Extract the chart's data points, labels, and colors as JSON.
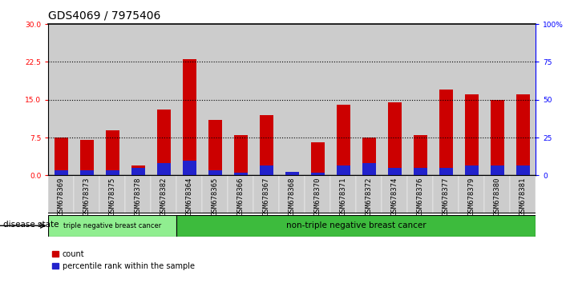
{
  "title": "GDS4069 / 7975406",
  "samples": [
    "GSM678369",
    "GSM678373",
    "GSM678375",
    "GSM678378",
    "GSM678382",
    "GSM678364",
    "GSM678365",
    "GSM678366",
    "GSM678367",
    "GSM678368",
    "GSM678370",
    "GSM678371",
    "GSM678372",
    "GSM678374",
    "GSM678376",
    "GSM678377",
    "GSM678379",
    "GSM678380",
    "GSM678381"
  ],
  "red_values": [
    7.5,
    7.0,
    9.0,
    2.0,
    13.0,
    23.0,
    11.0,
    8.0,
    12.0,
    0.5,
    6.5,
    14.0,
    7.5,
    14.5,
    8.0,
    17.0,
    16.0,
    15.0,
    16.0
  ],
  "blue_values": [
    1.0,
    1.0,
    1.0,
    1.5,
    2.5,
    3.0,
    1.0,
    0.5,
    2.0,
    0.7,
    0.5,
    2.0,
    2.5,
    1.5,
    1.5,
    1.5,
    2.0,
    2.0,
    2.0
  ],
  "group1_label": "triple negative breast cancer",
  "group1_count": 5,
  "group2_label": "non-triple negative breast cancer",
  "group2_count": 14,
  "disease_state_label": "disease state",
  "legend_red": "count",
  "legend_blue": "percentile rank within the sample",
  "ylim_left": [
    0,
    30
  ],
  "ylim_right": [
    0,
    100
  ],
  "yticks_left": [
    0,
    7.5,
    15,
    22.5,
    30
  ],
  "yticks_right": [
    0,
    25,
    50,
    75,
    100
  ],
  "yticklabels_right": [
    "0",
    "25",
    "50",
    "75",
    "100%"
  ],
  "grid_lines": [
    7.5,
    15,
    22.5
  ],
  "bar_color_red": "#cc0000",
  "bar_color_blue": "#2222cc",
  "cell_bg": "#cccccc",
  "group1_bg": "#90ee90",
  "group2_bg": "#3dbb3d",
  "bar_width": 0.55,
  "title_fontsize": 10,
  "tick_fontsize": 6.5,
  "label_fontsize": 7.5
}
